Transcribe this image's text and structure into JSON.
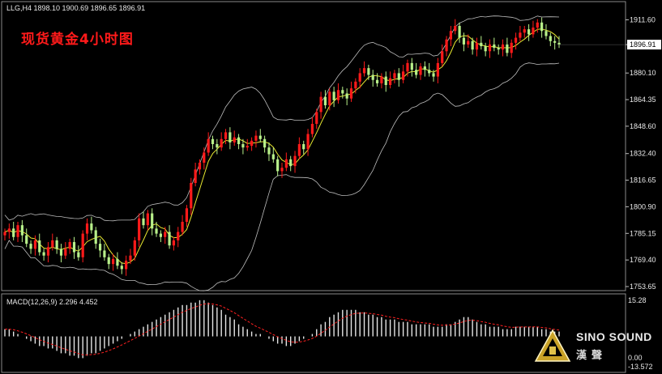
{
  "header": {
    "symbol_text": "LLG,H4  1898.10 1900.69 1896.65 1896.91",
    "title": "现货黄金4小时图"
  },
  "price_axis": {
    "ticks": [
      "1911.60",
      "1896.91",
      "1880.10",
      "1864.35",
      "1848.60",
      "1832.40",
      "1816.65",
      "1800.90",
      "1785.15",
      "1769.40",
      "1753.65"
    ],
    "current_price": "1896.91"
  },
  "macd": {
    "label": "MACD(12,26,9) 2.296 4.452",
    "top_tick": "15.28",
    "bottom_tick": "-13.572",
    "zero_tick": "0.00"
  },
  "watermark": {
    "name": "SINO SOUND",
    "cn": "漢聲"
  },
  "colors": {
    "bull": "#ff1a1a",
    "bear": "#b8f08a",
    "ma": "#e8e830",
    "band": "#bdbdbd",
    "macd_hist": "#e6e6e6",
    "macd_signal": "#ff2020",
    "current_tag_bg": "#ffffff"
  },
  "chart_data": [
    {
      "type": "candlestick",
      "title": "现货黄金4小时图",
      "ylim": [
        1753.65,
        1919.5
      ],
      "indicators": [
        "Bollinger Bands",
        "Moving average"
      ],
      "closes": [
        1786,
        1788,
        1783,
        1790,
        1784,
        1779,
        1776,
        1781,
        1774,
        1772,
        1777,
        1781,
        1776,
        1772,
        1776,
        1780,
        1774,
        1771,
        1785,
        1791,
        1787,
        1779,
        1775,
        1771,
        1767,
        1770,
        1766,
        1764,
        1769,
        1772,
        1781,
        1794,
        1790,
        1797,
        1788,
        1785,
        1783,
        1786,
        1778,
        1781,
        1786,
        1792,
        1800,
        1815,
        1823,
        1827,
        1833,
        1841,
        1838,
        1836,
        1841,
        1845,
        1839,
        1842,
        1838,
        1836,
        1837,
        1840,
        1843,
        1841,
        1836,
        1832,
        1829,
        1822,
        1824,
        1829,
        1825,
        1831,
        1838,
        1835,
        1844,
        1850,
        1857,
        1866,
        1861,
        1869,
        1864,
        1870,
        1868,
        1865,
        1871,
        1875,
        1880,
        1883,
        1879,
        1876,
        1874,
        1878,
        1873,
        1877,
        1880,
        1876,
        1881,
        1886,
        1882,
        1879,
        1884,
        1882,
        1880,
        1878,
        1886,
        1893,
        1900,
        1905,
        1908,
        1901,
        1897,
        1899,
        1894,
        1898,
        1896,
        1893,
        1897,
        1895,
        1894,
        1897,
        1892,
        1898,
        1901,
        1904,
        1906,
        1903,
        1907,
        1910,
        1905,
        1902,
        1899,
        1898,
        1896.91
      ],
      "macd_values": [
        3,
        3,
        2,
        1,
        0,
        -1,
        -2,
        -3,
        -4,
        -4,
        -5,
        -5,
        -6,
        -7,
        -7,
        -8,
        -8,
        -9,
        -9,
        -8,
        -7,
        -7,
        -6,
        -5,
        -4,
        -3,
        -2,
        -1,
        0,
        1,
        2,
        3,
        4,
        5,
        6,
        7,
        8,
        9,
        10,
        11,
        12,
        13,
        13,
        14,
        14,
        15,
        15,
        14,
        13,
        12,
        11,
        9,
        8,
        7,
        5,
        4,
        3,
        2,
        1,
        1,
        0,
        -1,
        -2,
        -3,
        -3,
        -4,
        -4,
        -3,
        -2,
        -1,
        0,
        1,
        3,
        5,
        6,
        8,
        9,
        10,
        11,
        11,
        11,
        11,
        10,
        10,
        9,
        9,
        8,
        8,
        7,
        7,
        7,
        6,
        6,
        6,
        5,
        5,
        5,
        5,
        5,
        4,
        4,
        4,
        5,
        5,
        6,
        7,
        8,
        8,
        7,
        6,
        5,
        5,
        4,
        4,
        4,
        3,
        3,
        3,
        4,
        4,
        4,
        4,
        4,
        4,
        3,
        3,
        2,
        2,
        2
      ],
      "macd_ylim": [
        -13.572,
        15.28
      ]
    }
  ]
}
